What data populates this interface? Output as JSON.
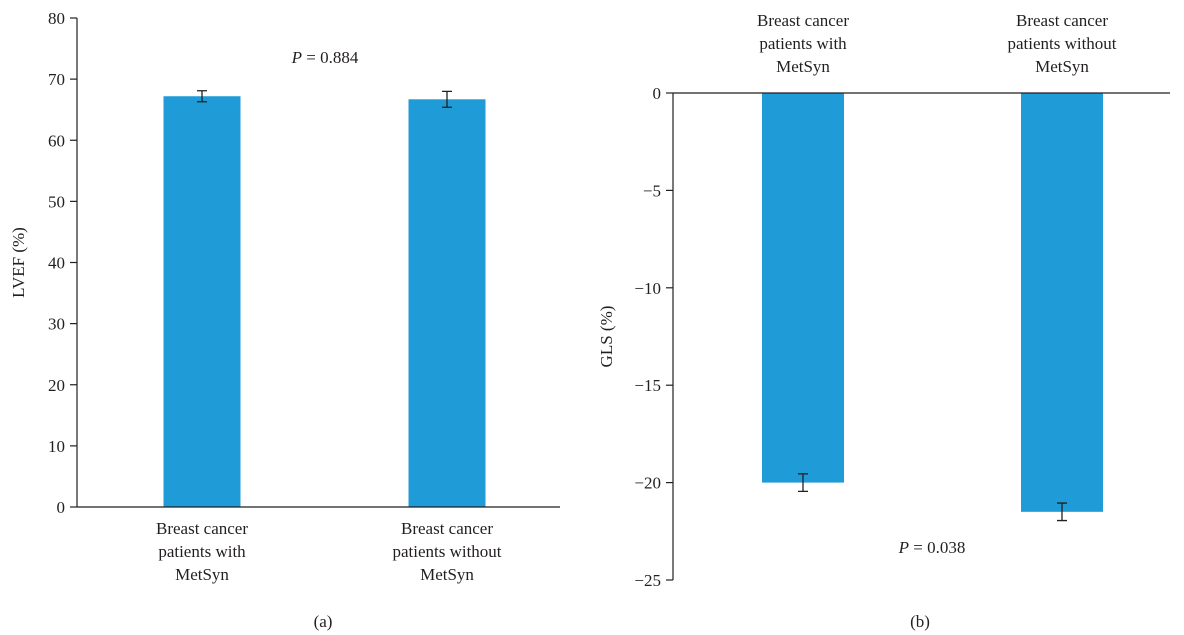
{
  "chart_data": [
    {
      "type": "bar",
      "panel_label": "(a)",
      "categories": [
        [
          "Breast cancer",
          "patients with",
          "MetSyn"
        ],
        [
          "Breast cancer",
          "patients without",
          "MetSyn"
        ]
      ],
      "values": [
        67.2,
        66.7
      ],
      "errors": [
        0.9,
        1.3
      ],
      "ylabel": "LVEF (%)",
      "ylim": [
        0,
        80
      ],
      "yticks": [
        0,
        10,
        20,
        30,
        40,
        50,
        60,
        70,
        80
      ],
      "annotation": {
        "p_label": "P",
        "p_value": " = 0.884"
      },
      "category_axis_position": "bottom",
      "bar_color": "#1f9bd7",
      "grid": false
    },
    {
      "type": "bar",
      "panel_label": "(b)",
      "categories": [
        [
          "Breast cancer",
          "patients with",
          "MetSyn"
        ],
        [
          "Breast cancer",
          "patients without",
          "MetSyn"
        ]
      ],
      "values": [
        -20.0,
        -21.5
      ],
      "errors": [
        0.45,
        0.45
      ],
      "ylabel": "GLS (%)",
      "ylim": [
        -25,
        0
      ],
      "yticks": [
        0,
        -5,
        -10,
        -15,
        -20,
        -25
      ],
      "annotation": {
        "p_label": "P",
        "p_value": " = 0.038"
      },
      "category_axis_position": "top",
      "bar_color": "#1f9bd7",
      "grid": false
    }
  ]
}
